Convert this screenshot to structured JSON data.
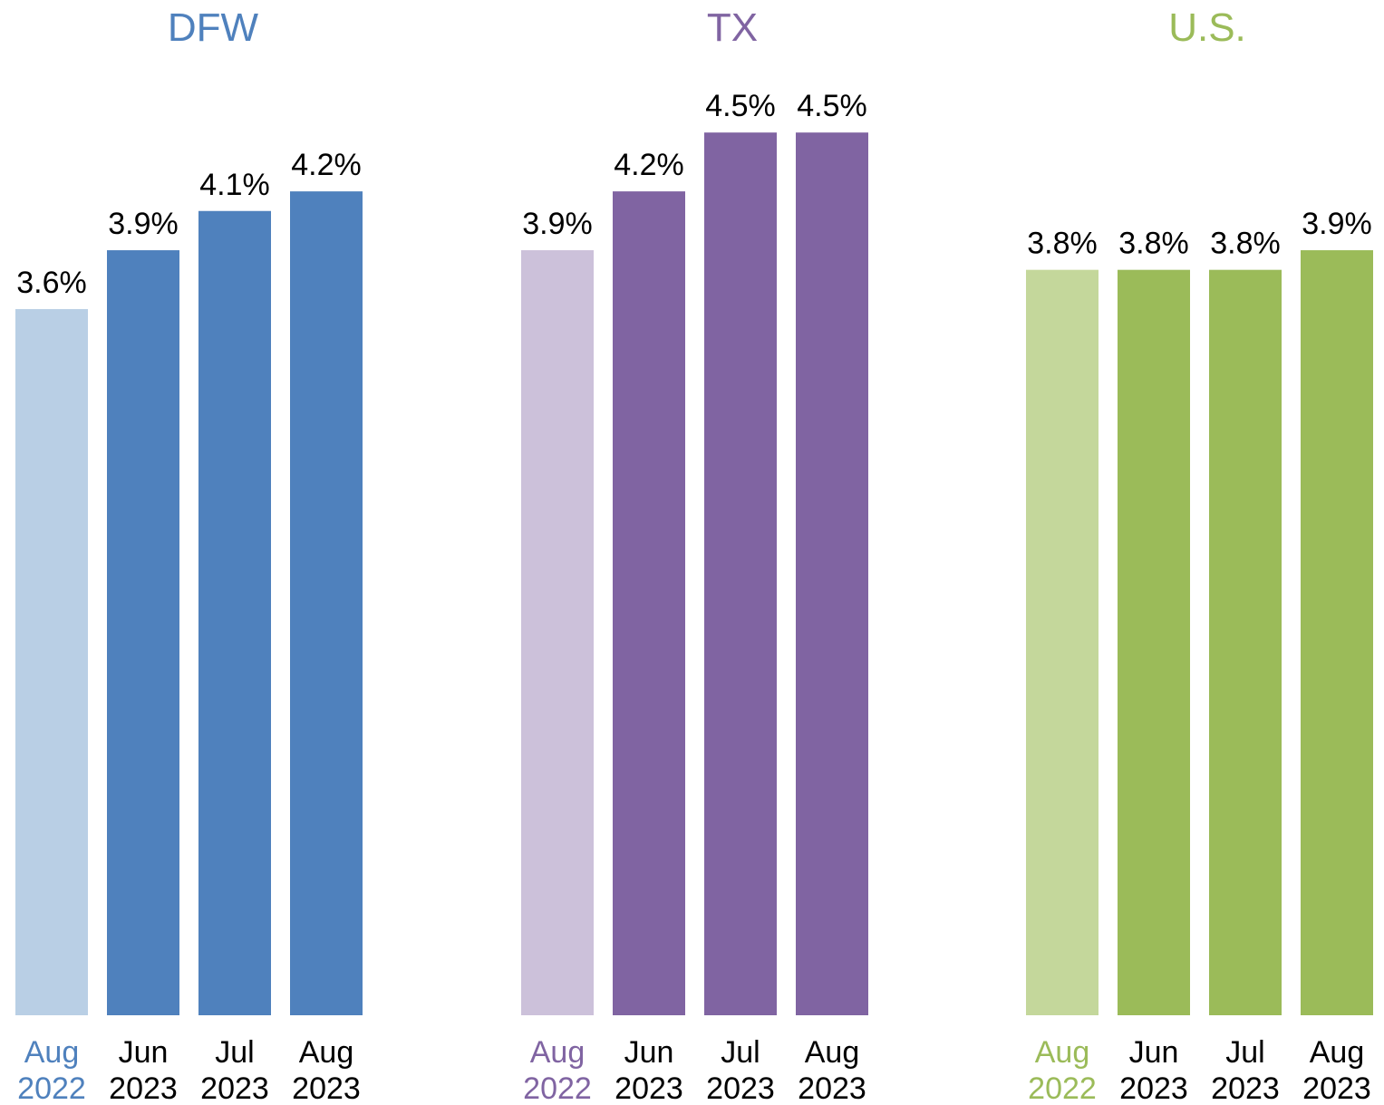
{
  "chart_data": [
    {
      "type": "bar",
      "title": "DFW",
      "title_color": "#4f81bd",
      "categories": [
        "Aug 2022",
        "Jun 2023",
        "Jul 2023",
        "Aug 2023"
      ],
      "values": [
        3.6,
        3.9,
        4.1,
        4.2
      ],
      "value_labels": [
        "3.6%",
        "3.9%",
        "4.1%",
        "4.2%"
      ],
      "colors": [
        "#b9cfe5",
        "#4f81bd",
        "#4f81bd",
        "#4f81bd"
      ],
      "ylim": [
        0,
        5
      ]
    },
    {
      "type": "bar",
      "title": "TX",
      "title_color": "#8064a2",
      "categories": [
        "Aug 2022",
        "Jun 2023",
        "Jul 2023",
        "Aug 2023"
      ],
      "values": [
        3.9,
        4.2,
        4.5,
        4.5
      ],
      "value_labels": [
        "3.9%",
        "4.2%",
        "4.5%",
        "4.5%"
      ],
      "colors": [
        "#ccc1da",
        "#8064a2",
        "#8064a2",
        "#8064a2"
      ],
      "ylim": [
        0,
        5
      ]
    },
    {
      "type": "bar",
      "title": "U.S.",
      "title_color": "#9bbb59",
      "categories": [
        "Aug 2022",
        "Jun 2023",
        "Jul 2023",
        "Aug 2023"
      ],
      "values": [
        3.8,
        3.8,
        3.8,
        3.9
      ],
      "value_labels": [
        "3.8%",
        "3.8%",
        "3.8%",
        "3.9%"
      ],
      "colors": [
        "#c4d79b",
        "#9bbb59",
        "#9bbb59",
        "#9bbb59"
      ],
      "ylim": [
        0,
        5
      ]
    }
  ]
}
